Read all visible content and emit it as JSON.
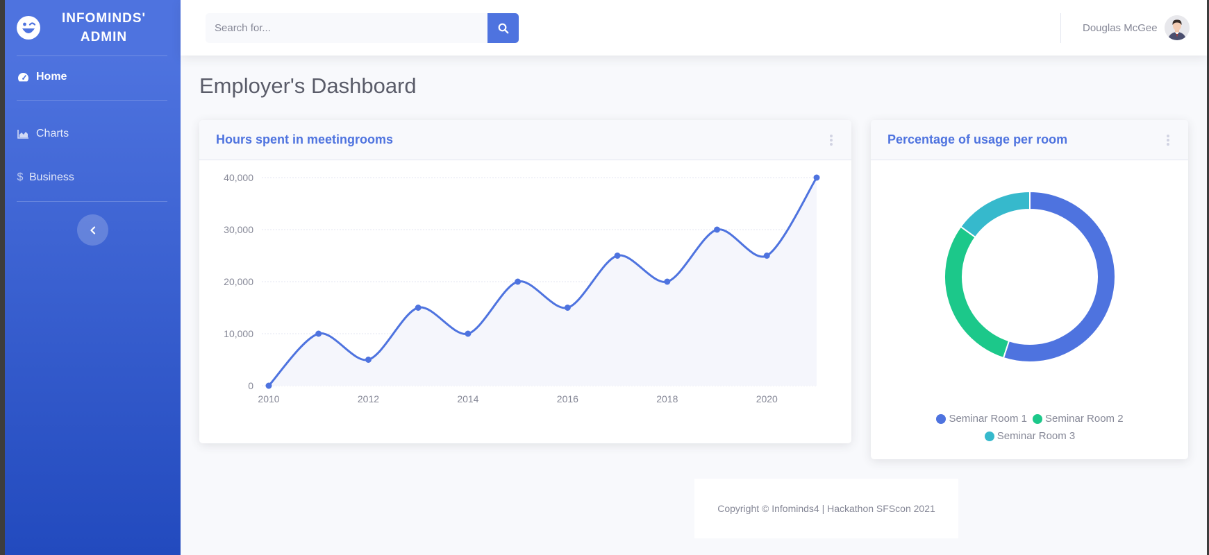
{
  "sidebar": {
    "brand": {
      "line1": "INFOMINDS'",
      "line2": "ADMIN",
      "icon": "laugh-wink-icon"
    },
    "items": [
      {
        "label": "Home",
        "icon": "tachometer-icon",
        "active": true
      },
      {
        "label": "Charts",
        "icon": "chart-area-icon",
        "active": false
      },
      {
        "label": "Business",
        "icon": "dollar-icon",
        "active": false
      }
    ],
    "toggle_icon": "chevron-left-icon"
  },
  "topbar": {
    "search_placeholder": "Search for...",
    "search_icon": "search-icon",
    "user_name": "Douglas McGee"
  },
  "page": {
    "title": "Employer's Dashboard"
  },
  "cards": {
    "line": {
      "title": "Hours spent in meetingrooms"
    },
    "donut": {
      "title": "Percentage of usage per room"
    }
  },
  "chart_data": [
    {
      "type": "area",
      "x": [
        2010,
        2011,
        2012,
        2013,
        2014,
        2015,
        2016,
        2017,
        2018,
        2019,
        2020,
        2021
      ],
      "values": [
        0,
        10000,
        5000,
        15000,
        10000,
        20000,
        15000,
        25000,
        20000,
        30000,
        25000,
        40000
      ],
      "x_ticks": [
        "2010",
        "2012",
        "2014",
        "2016",
        "2018",
        "2020"
      ],
      "y_ticks": [
        "0",
        "10,000",
        "20,000",
        "30,000",
        "40,000"
      ],
      "ylim": [
        0,
        40000
      ],
      "grid": true,
      "color": "#4e73df",
      "fill": "#f5f6fc"
    },
    {
      "type": "pie",
      "labels": [
        "Seminar Room 1",
        "Seminar Room 2",
        "Seminar Room 3"
      ],
      "values": [
        55,
        30,
        15
      ],
      "colors": [
        "#4e73df",
        "#1cc88a",
        "#36b9cc"
      ],
      "legend": "bottom"
    }
  ],
  "footer": {
    "text": "Copyright © Infominds4 | Hackathon SFScon 2021"
  }
}
